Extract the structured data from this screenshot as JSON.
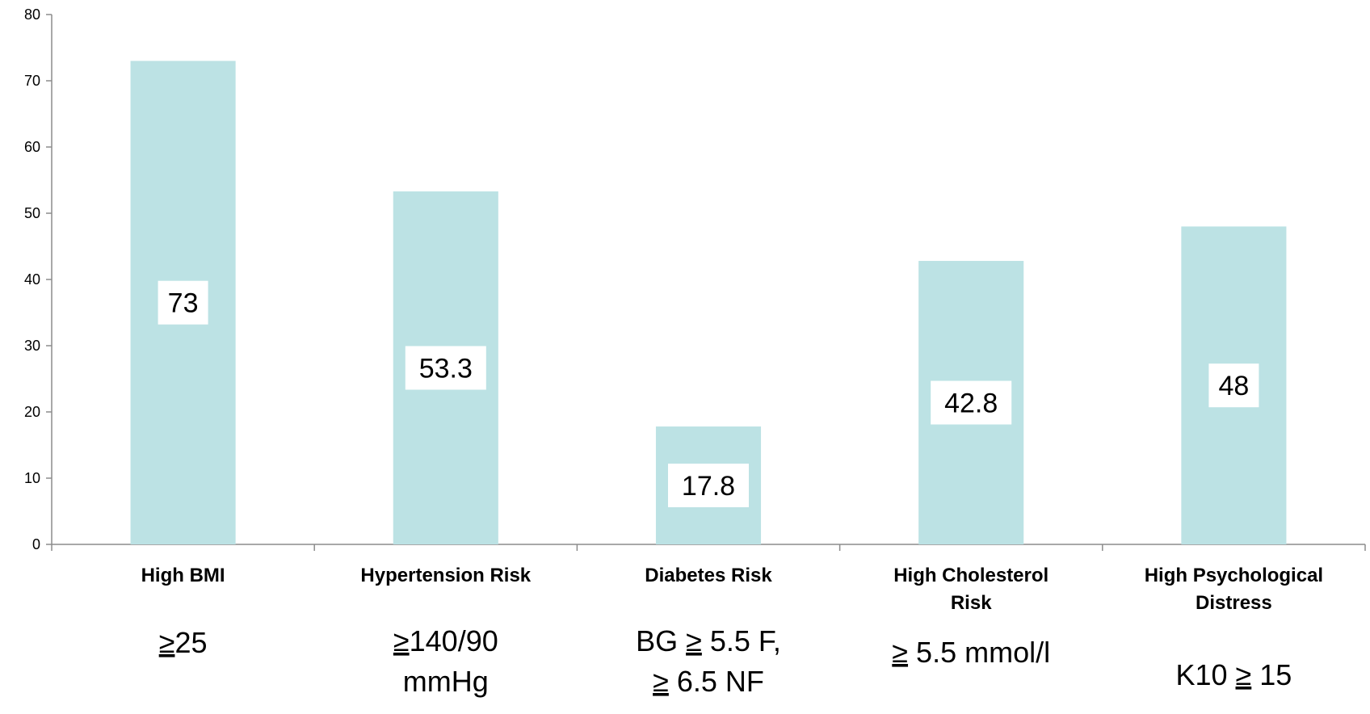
{
  "chart_data": {
    "type": "bar",
    "title": "",
    "xlabel": "",
    "ylabel": "",
    "ylim": [
      0,
      80
    ],
    "yticks": [
      0,
      10,
      20,
      30,
      40,
      50,
      60,
      70,
      80
    ],
    "grid": false,
    "legend": "none",
    "categories": [
      [
        "High BMI"
      ],
      [
        "Hypertension Risk"
      ],
      [
        "Diabetes Risk"
      ],
      [
        "High Cholesterol",
        "Risk"
      ],
      [
        "High Psychological",
        "Distress"
      ]
    ],
    "values": [
      73,
      53.3,
      17.8,
      42.8,
      48
    ],
    "data_labels": [
      "73",
      "53.3",
      "17.8",
      "42.8",
      "48"
    ],
    "thresholds": [
      [
        [
          {
            "t": "≥",
            "u": true
          },
          {
            "t": "25"
          }
        ]
      ],
      [
        [
          {
            "t": "≥",
            "u": true
          },
          {
            "t": "140/90"
          }
        ],
        [
          {
            "t": "mmHg"
          }
        ]
      ],
      [
        [
          {
            "t": "BG "
          },
          {
            "t": "≥",
            "u": true
          },
          {
            "t": " 5.5 F,"
          }
        ],
        [
          {
            "t": "≥",
            "u": true
          },
          {
            "t": " 6.5 NF"
          }
        ]
      ],
      [
        [
          {
            "t": "≥",
            "u": true
          },
          {
            "t": " 5.5 mmol/l"
          }
        ]
      ],
      [
        [
          {
            "t": "K10 "
          },
          {
            "t": "≥",
            "u": true
          },
          {
            "t": " 15"
          }
        ]
      ]
    ],
    "colors": {
      "bar": "#bce2e4",
      "axis": "#8c8c8c",
      "label_box": "#ffffff"
    }
  }
}
